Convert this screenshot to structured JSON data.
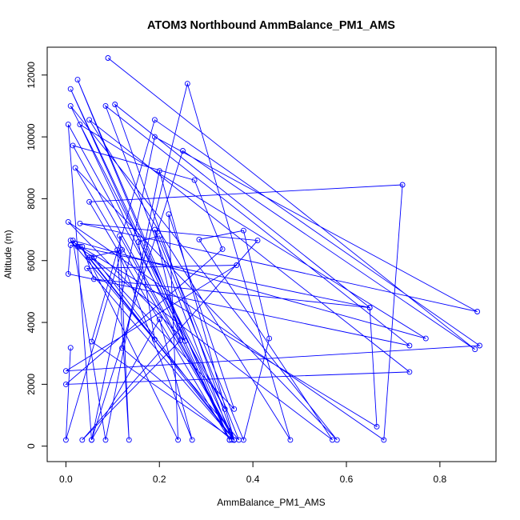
{
  "chart_data": {
    "type": "line",
    "title": "ATOM3 Northbound AmmBalance_PM1_AMS",
    "xlabel": "AmmBalance_PM1_AMS",
    "ylabel": "Altitude (m)",
    "xlim": [
      -0.04,
      0.92
    ],
    "ylim": [
      -500,
      12900
    ],
    "xticks": [
      0.0,
      0.2,
      0.4,
      0.6,
      0.8
    ],
    "xtick_labels": [
      "0.0",
      "0.2",
      "0.4",
      "0.6",
      "0.8"
    ],
    "yticks": [
      0,
      2000,
      4000,
      6000,
      8000,
      10000,
      12000
    ],
    "ytick_labels": [
      "0",
      "2000",
      "4000",
      "6000",
      "8000",
      "10000",
      "12000"
    ],
    "grid": false,
    "color": "#0000ff",
    "series": [
      {
        "marker": "open-circle",
        "points": [
          [
            0.09,
            12550
          ],
          [
            0.875,
            3130
          ],
          [
            0.25,
            9550
          ],
          [
            0.055,
            200
          ],
          [
            0.005,
            10400
          ],
          [
            0.34,
            1200
          ],
          [
            0.01,
            11000
          ],
          [
            0.58,
            200
          ],
          [
            0.02,
            9000
          ],
          [
            0.36,
            200
          ],
          [
            0.01,
            11550
          ],
          [
            0.35,
            200
          ],
          [
            0.025,
            11850
          ],
          [
            0.255,
            3400
          ],
          [
            0.005,
            7250
          ],
          [
            0.68,
            200
          ],
          [
            0.72,
            8450
          ],
          [
            0.05,
            7900
          ],
          [
            0.35,
            200
          ],
          [
            0.03,
            10400
          ],
          [
            0.77,
            3480
          ],
          [
            0.015,
            6650
          ],
          [
            0.085,
            200
          ],
          [
            0.2,
            8900
          ],
          [
            0.36,
            200
          ],
          [
            0.105,
            11050
          ],
          [
            0.65,
            4480
          ],
          [
            0.01,
            6500
          ],
          [
            0.005,
            5570
          ],
          [
            0.735,
            3250
          ],
          [
            0.085,
            11000
          ],
          [
            0.355,
            200
          ],
          [
            0.12,
            3170
          ],
          [
            0.26,
            11720
          ],
          [
            0.48,
            200
          ],
          [
            0.05,
            10550
          ],
          [
            0.735,
            2400
          ],
          [
            0.0,
            2000
          ],
          [
            0.335,
            6370
          ],
          [
            0.275,
            8600
          ],
          [
            0.015,
            9720
          ],
          [
            0.36,
            200
          ],
          [
            0.055,
            3380
          ],
          [
            0.19,
            10550
          ],
          [
            0.885,
            3250
          ],
          [
            0.0,
            2430
          ],
          [
            0.365,
            5850
          ],
          [
            0.045,
            5750
          ],
          [
            0.36,
            200
          ],
          [
            0.03,
            6450
          ],
          [
            0.02,
            6550
          ],
          [
            0.025,
            6450
          ],
          [
            0.06,
            6100
          ],
          [
            0.36,
            200
          ],
          [
            0.115,
            6800
          ],
          [
            0.135,
            200
          ],
          [
            0.11,
            6350
          ],
          [
            0.27,
            200
          ],
          [
            0.2,
            4100
          ],
          [
            0.055,
            200
          ],
          [
            0.19,
            10000
          ],
          [
            0.88,
            4350
          ],
          [
            0.03,
            7200
          ],
          [
            0.41,
            6650
          ],
          [
            0.035,
            200
          ],
          [
            0.245,
            3420
          ],
          [
            0.19,
            7000
          ],
          [
            0.37,
            200
          ],
          [
            0.01,
            6650
          ],
          [
            0.665,
            630
          ],
          [
            0.65,
            4480
          ],
          [
            0.06,
            5400
          ],
          [
            0.035,
            6450
          ],
          [
            0.24,
            200
          ],
          [
            0.22,
            7500
          ],
          [
            0.36,
            1200
          ],
          [
            0.055,
            6100
          ],
          [
            0.57,
            200
          ],
          [
            0.285,
            6680
          ],
          [
            0.38,
            6970
          ],
          [
            0.435,
            3480
          ],
          [
            0.38,
            200
          ],
          [
            0.2,
            6800
          ],
          [
            0.155,
            6600
          ],
          [
            0.19,
            3450
          ],
          [
            0.05,
            6100
          ],
          [
            0.12,
            6350
          ],
          [
            0.0,
            200
          ],
          [
            0.01,
            3180
          ]
        ]
      }
    ]
  }
}
